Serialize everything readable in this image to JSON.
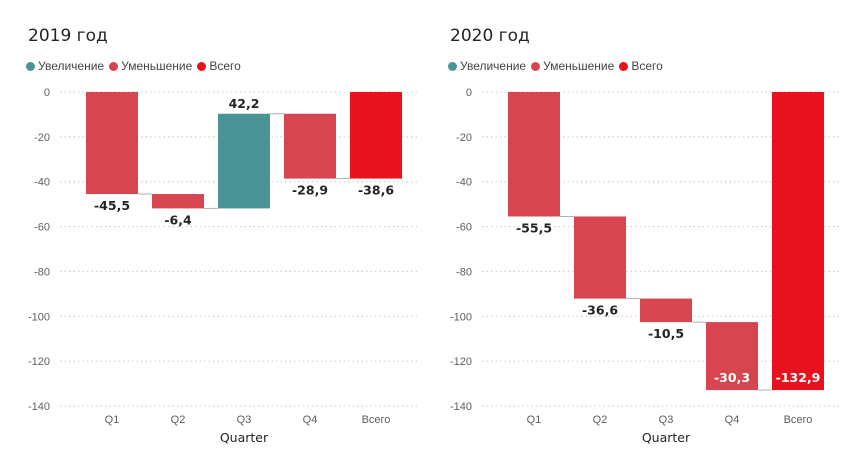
{
  "chart_data": [
    {
      "type": "waterfall",
      "title": "2019 год",
      "legend": [
        {
          "label": "Увеличение",
          "color": "#4a9496"
        },
        {
          "label": "Уменьшение",
          "color": "#d64550"
        },
        {
          "label": "Всего",
          "color": "#e8111e"
        }
      ],
      "categories": [
        "Q1",
        "Q2",
        "Q3",
        "Q4",
        "Всего"
      ],
      "values": [
        -45.5,
        -6.4,
        42.2,
        -28.9,
        -38.6
      ],
      "labels": [
        "-45,5",
        "-6,4",
        "42,2",
        "-28,9",
        "-38,6"
      ],
      "kinds": [
        "decrease",
        "decrease",
        "increase",
        "decrease",
        "total"
      ],
      "xlabel": "Quarter",
      "ylabel": "",
      "ylim": [
        -140,
        0
      ],
      "yticks": [
        0,
        -20,
        -40,
        -60,
        -80,
        -100,
        -120,
        -140
      ],
      "grid": true
    },
    {
      "type": "waterfall",
      "title": "2020 год",
      "legend": [
        {
          "label": "Увеличение",
          "color": "#4a9496"
        },
        {
          "label": "Уменьшение",
          "color": "#d64550"
        },
        {
          "label": "Всего",
          "color": "#e8111e"
        }
      ],
      "categories": [
        "Q1",
        "Q2",
        "Q3",
        "Q4",
        "Всего"
      ],
      "values": [
        -55.5,
        -36.6,
        -10.5,
        -30.3,
        -132.9
      ],
      "labels": [
        "-55,5",
        "-36,6",
        "-10,5",
        "-30,3",
        "-132,9"
      ],
      "kinds": [
        "decrease",
        "decrease",
        "decrease",
        "decrease",
        "total"
      ],
      "xlabel": "Quarter",
      "ylabel": "",
      "ylim": [
        -140,
        0
      ],
      "yticks": [
        0,
        -20,
        -40,
        -60,
        -80,
        -100,
        -120,
        -140
      ],
      "grid": true
    }
  ]
}
